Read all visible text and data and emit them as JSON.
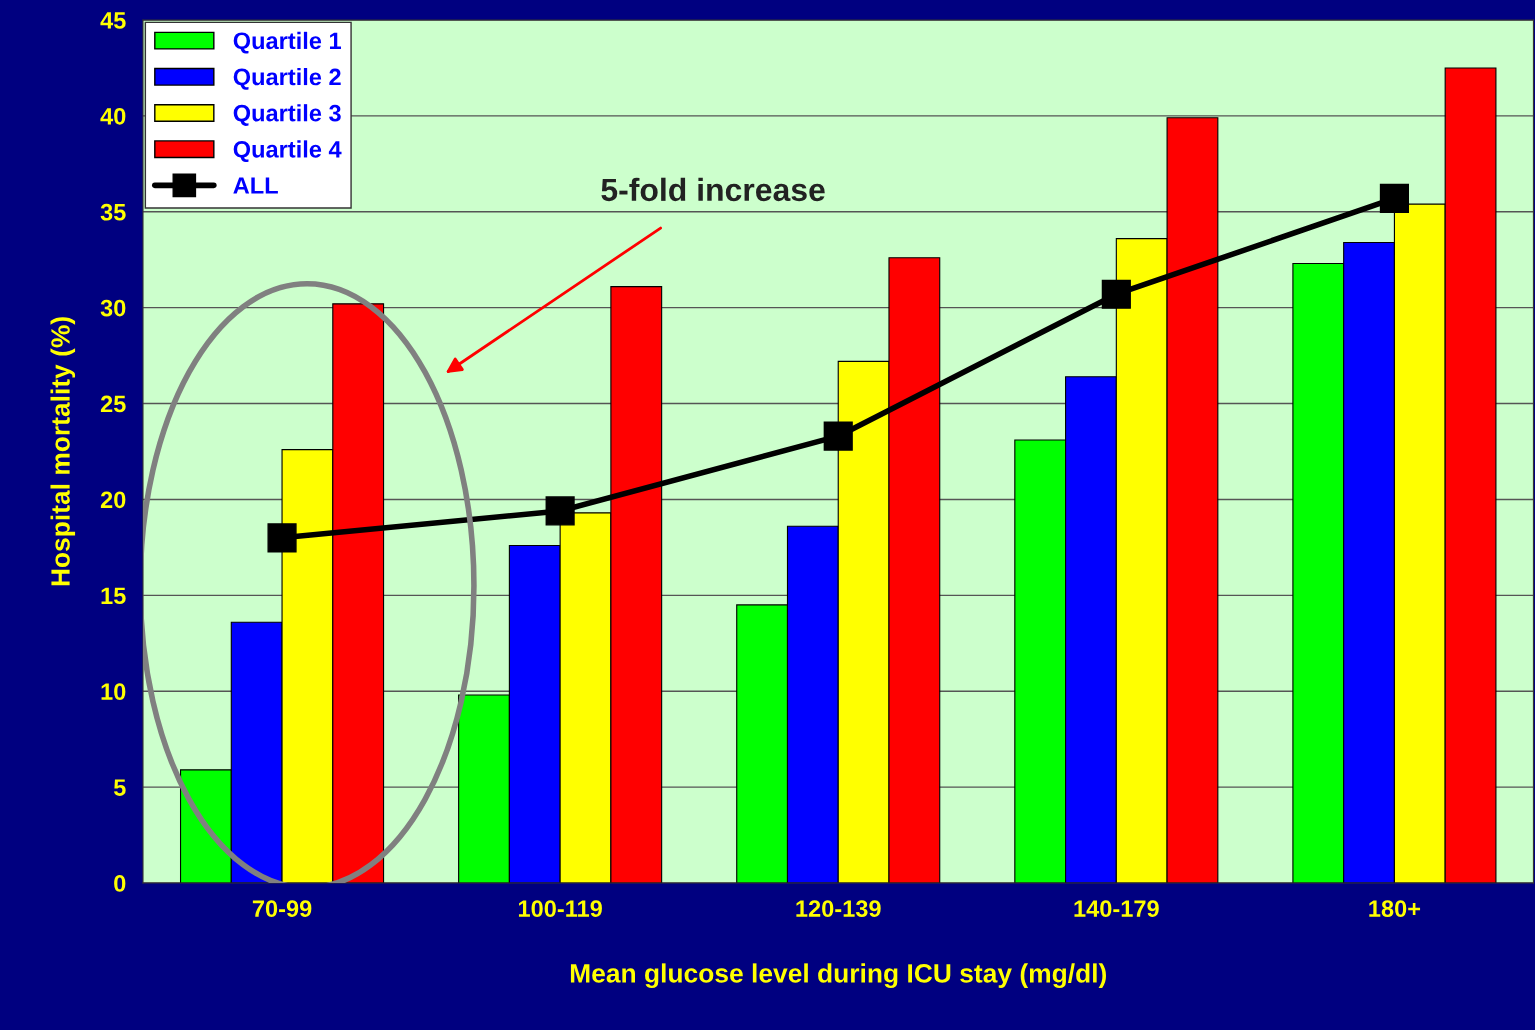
{
  "chart_data": {
    "type": "bar",
    "xlabel": "Mean glucose level during ICU stay (mg/dl)",
    "ylabel": "Hospital mortality (%)",
    "categories": [
      "70-99",
      "100-119",
      "120-139",
      "140-179",
      "180+"
    ],
    "series": [
      {
        "name": "Quartile 1",
        "color": "#00ff00",
        "values": [
          5.9,
          9.8,
          14.5,
          23.1,
          32.3
        ]
      },
      {
        "name": "Quartile 2",
        "color": "#0000ff",
        "values": [
          13.6,
          17.6,
          18.6,
          26.4,
          33.4
        ]
      },
      {
        "name": "Quartile 3",
        "color": "#ffff00",
        "values": [
          22.6,
          19.3,
          27.2,
          33.6,
          35.4
        ]
      },
      {
        "name": "Quartile 4",
        "color": "#ff0000",
        "values": [
          30.2,
          31.1,
          32.6,
          39.9,
          42.5
        ]
      },
      {
        "name": "ALL",
        "type": "line",
        "color": "#000000",
        "marker": "square",
        "values": [
          18.0,
          19.4,
          23.3,
          30.7,
          35.7
        ]
      }
    ],
    "ylim": [
      0,
      45
    ],
    "yticks": [
      0,
      5,
      10,
      15,
      20,
      25,
      30,
      35,
      40,
      45
    ],
    "grid": "y",
    "legend": "top left",
    "annotations": [
      "5-fold increase"
    ]
  }
}
